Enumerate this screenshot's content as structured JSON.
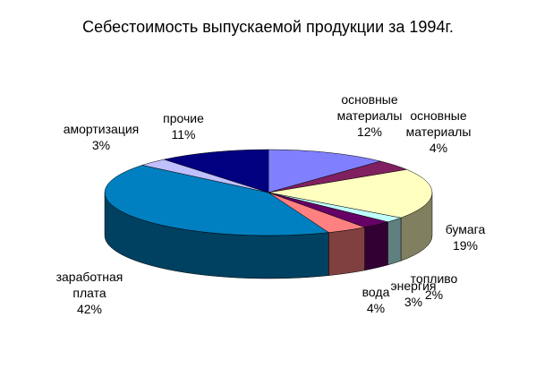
{
  "chart_data": {
    "type": "pie3d",
    "title": "Себестоимость выпускаемой продукции за 1994г.",
    "categories": [
      "основные материалы",
      "основные материалы",
      "бумага",
      "топливо",
      "энергия",
      "вода",
      "заработная плата",
      "амортизация",
      "прочие"
    ],
    "values": [
      12,
      4,
      19,
      2,
      3,
      4,
      42,
      3,
      11
    ],
    "value_labels": [
      "12%",
      "4%",
      "19%",
      "2%",
      "3%",
      "4%",
      "42%",
      "3%",
      "11%"
    ],
    "colors": [
      "#8080ff",
      "#802060",
      "#ffffc0",
      "#c0ffff",
      "#660066",
      "#ff8080",
      "#0080c0",
      "#c0c0ff",
      "#000080"
    ]
  }
}
